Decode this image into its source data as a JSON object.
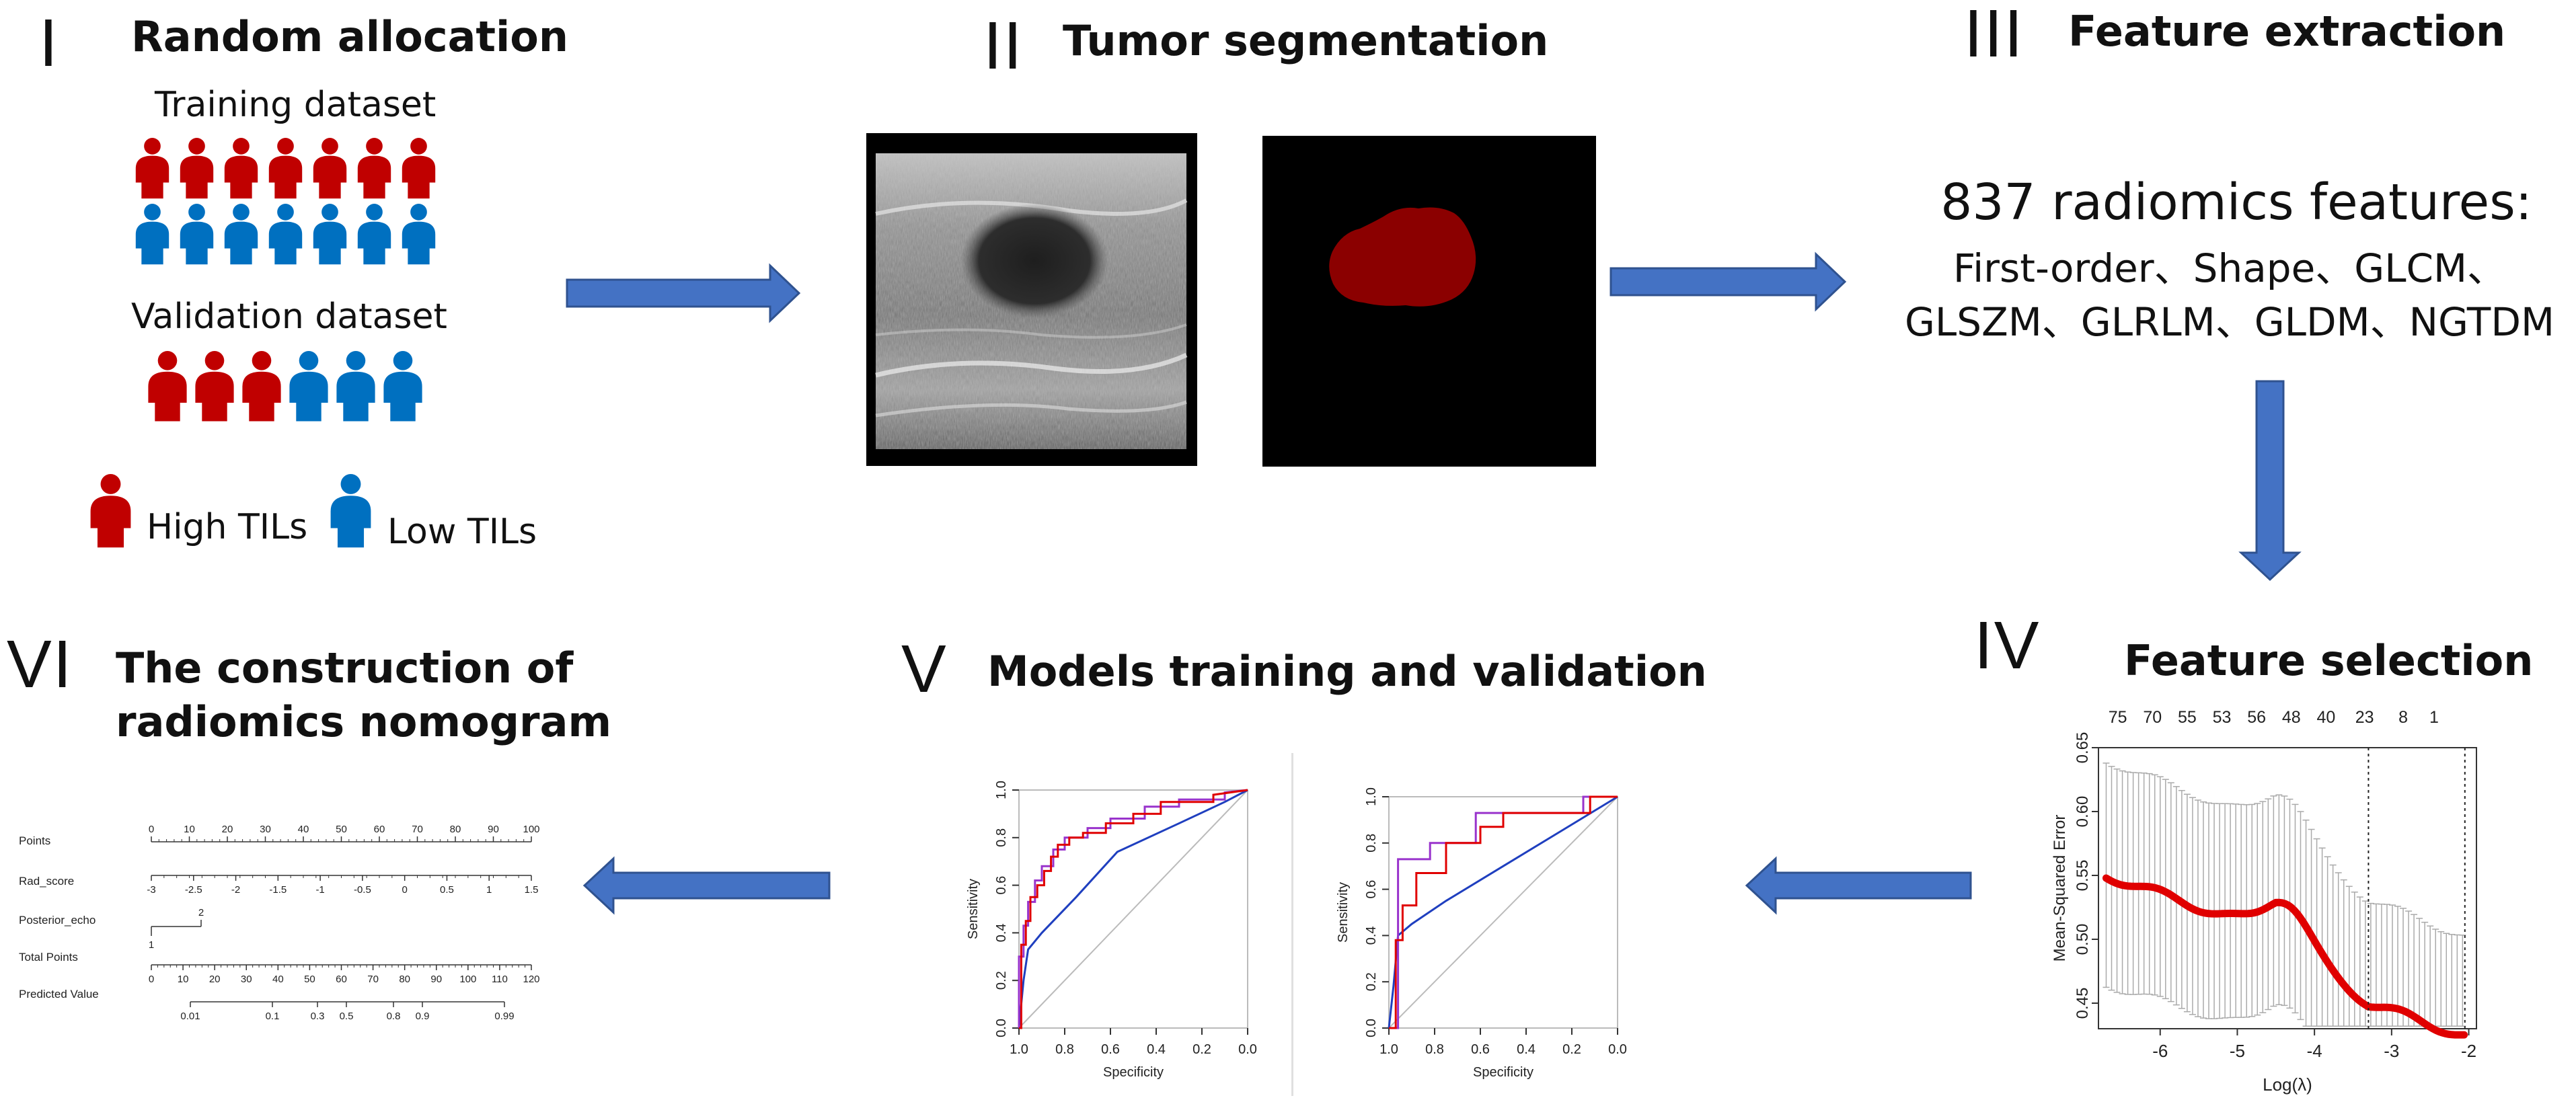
{
  "sections": {
    "s1": {
      "numeral": "I",
      "title": "Random allocation"
    },
    "s2": {
      "numeral": "II",
      "title": "Tumor segmentation"
    },
    "s3": {
      "numeral": "III",
      "title": "Feature extraction"
    },
    "s4": {
      "numeral": "IV",
      "title": "Feature selection"
    },
    "s5": {
      "numeral": "V",
      "title": "Models training and validation"
    },
    "s6": {
      "numeral": "VI",
      "title_line1": "The construction of",
      "title_line2": "radiomics nomogram"
    }
  },
  "allocation": {
    "training_label": "Training dataset",
    "validation_label": "Validation dataset",
    "legend_high": "High TILs",
    "legend_low": "Low TILs"
  },
  "features": {
    "line1": "837 radiomics features:",
    "line2": "First-order、Shape、GLCM、",
    "line3": "GLSZM、GLRLM、GLDM、NGTDM"
  },
  "colors": {
    "high": "#c00000",
    "low": "#0070c0",
    "arrow": "#4472c4",
    "arrow_border": "#2f528f",
    "mask": "#8b0000"
  },
  "lasso": {
    "top_counts": [
      "75",
      "70",
      "55",
      "53",
      "56",
      "48",
      "40",
      "23",
      "8",
      "1"
    ],
    "y_ticks": [
      "0.65",
      "0.60",
      "0.55",
      "0.50",
      "0.45"
    ],
    "x_ticks": [
      "-6",
      "-5",
      "-4",
      "-3",
      "-2"
    ],
    "ylabel": "Mean-Squared Error",
    "xlabel": "Log(λ)"
  },
  "roc": {
    "y_ticks": [
      "0.0",
      "0.2",
      "0.4",
      "0.6",
      "0.8",
      "1.0"
    ],
    "x_ticks": [
      "1.0",
      "0.8",
      "0.6",
      "0.4",
      "0.2",
      "0.0"
    ],
    "ylabel": "Sensitivity",
    "xlabel": "Specificity"
  },
  "nomogram": {
    "rows": [
      {
        "label": "Points",
        "ticks": [
          "0",
          "10",
          "20",
          "30",
          "40",
          "50",
          "60",
          "70",
          "80",
          "90",
          "100"
        ]
      },
      {
        "label": "Rad_score",
        "ticks": [
          "-3",
          "-2.5",
          "-2",
          "-1.5",
          "-1",
          "-0.5",
          "0",
          "0.5",
          "1",
          "1.5"
        ]
      },
      {
        "label": "Posterior_echo",
        "ticks": [
          "2",
          "1"
        ]
      },
      {
        "label": "Total Points",
        "ticks": [
          "0",
          "10",
          "20",
          "30",
          "40",
          "50",
          "60",
          "70",
          "80",
          "90",
          "100",
          "110",
          "120"
        ]
      },
      {
        "label": "Predicted Value",
        "ticks": [
          "0.01",
          "0.1",
          "0.3",
          "0.5",
          "0.8",
          "0.9",
          "0.99"
        ]
      }
    ]
  }
}
